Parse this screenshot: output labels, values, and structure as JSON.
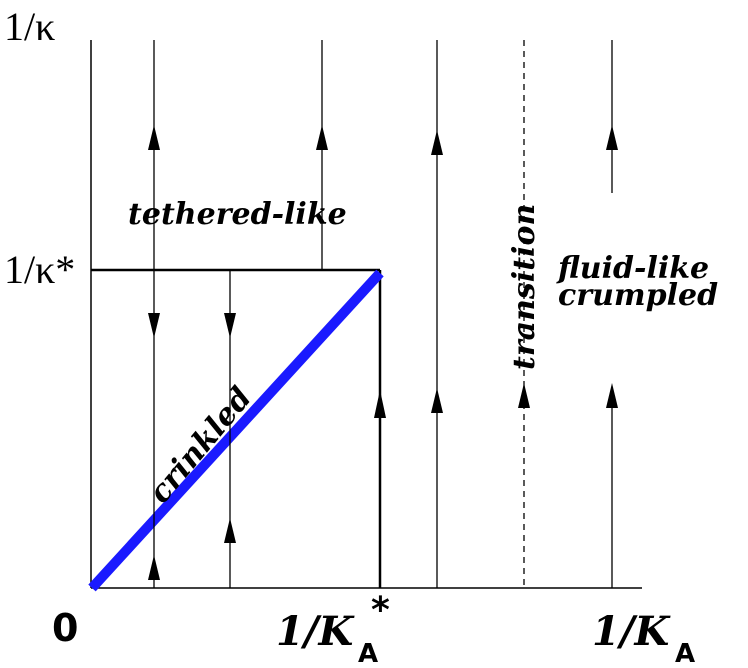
{
  "axes": {
    "y_label": "1/κ",
    "y_critical_label": "1/κ*",
    "origin_label": "0",
    "x_critical_label": "1/K",
    "x_critical_sub": "A",
    "x_critical_sup": "*",
    "x_label": "1/K",
    "x_sub": "A"
  },
  "regions": {
    "tethered": "tethered-like",
    "crinkled": "crinkled",
    "transition": "transition",
    "fluid_line1": "fluid-like",
    "fluid_line2": "crumpled"
  },
  "colors": {
    "ink": "#000000",
    "crinkled_line": "#1a1aff"
  }
}
